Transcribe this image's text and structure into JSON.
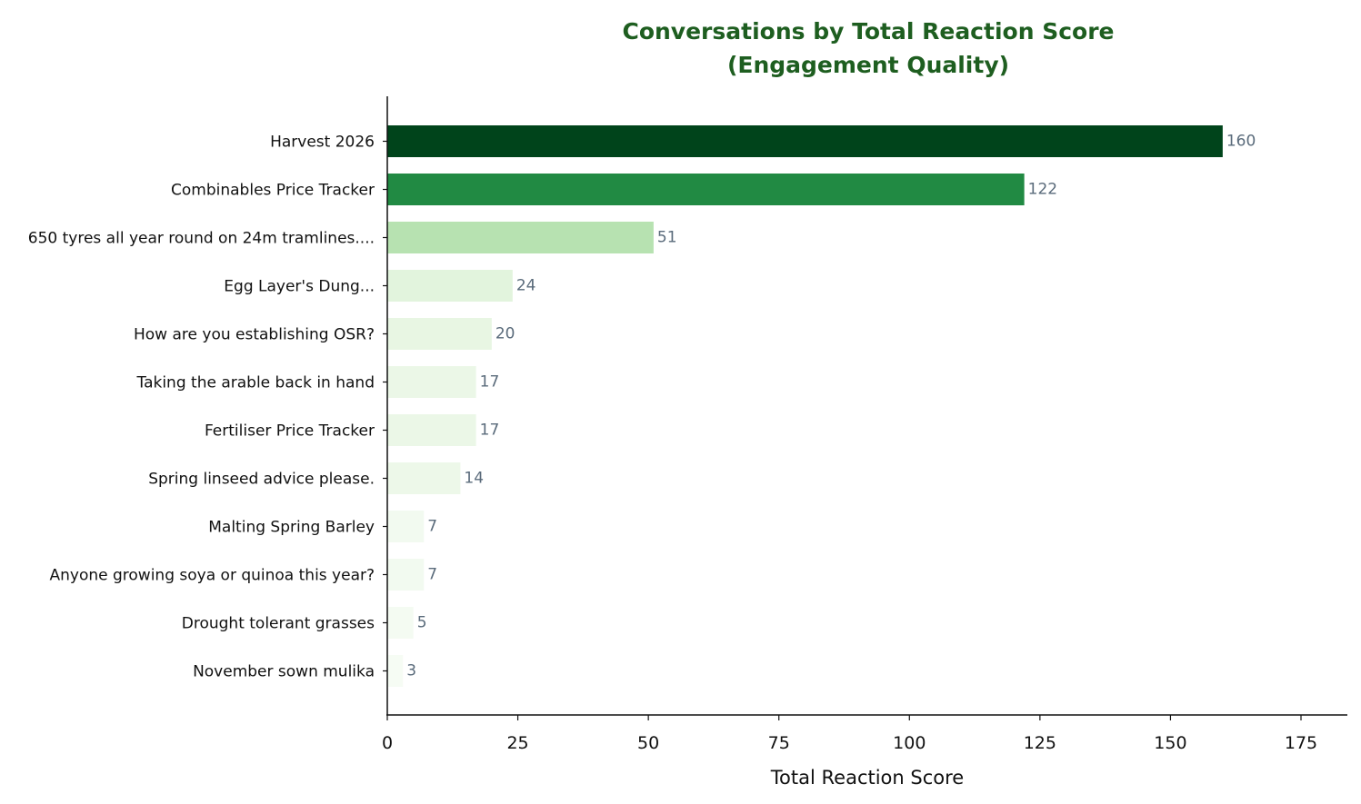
{
  "chart_data": {
    "type": "bar",
    "orientation": "horizontal",
    "title_line1": "Conversations by Total Reaction Score",
    "title_line2": "(Engagement Quality)",
    "xlabel": "Total Reaction Score",
    "ylabel": "",
    "xlim": [
      0,
      184
    ],
    "xticks": [
      0,
      25,
      50,
      75,
      100,
      125,
      150,
      175
    ],
    "grid": false,
    "categories": [
      "Harvest 2026",
      "Combinables Price Tracker",
      "650 tyres all year round on 24m tramlines....",
      "Egg Layer's Dung...",
      "How are you establishing OSR?",
      "Taking the arable back in hand",
      "Fertiliser Price Tracker",
      "Spring linseed advice please.",
      "Malting Spring Barley",
      "Anyone growing soya or quinoa this year?",
      "Drought tolerant grasses",
      "November sown mulika"
    ],
    "values": [
      160,
      122,
      51,
      24,
      20,
      17,
      17,
      14,
      7,
      7,
      5,
      3
    ],
    "colors": [
      "#00441b",
      "#218a43",
      "#b7e2b1",
      "#e2f4dd",
      "#e8f6e3",
      "#ebf7e7",
      "#ebf7e7",
      "#edf8e9",
      "#f2faf0",
      "#f2faf0",
      "#f4fbf2",
      "#f6fcf4"
    ],
    "title_color": "#1e5e20",
    "value_label_color": "#5a6b7b"
  }
}
